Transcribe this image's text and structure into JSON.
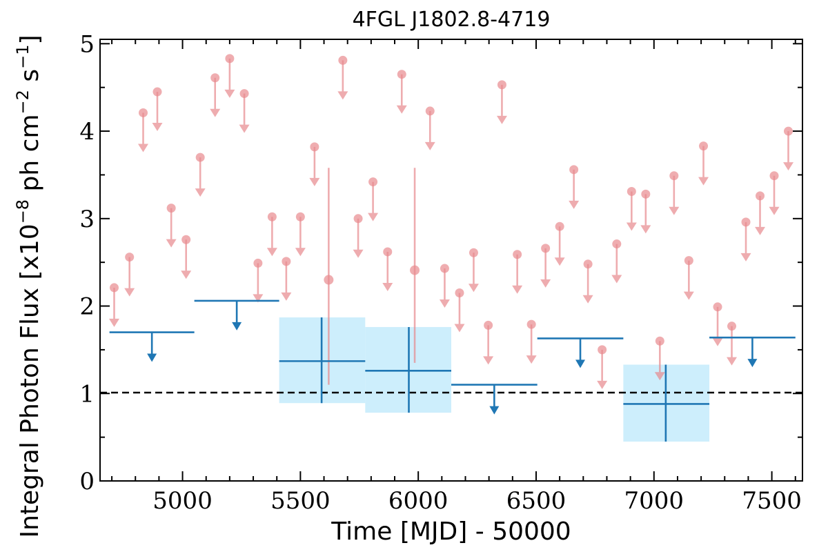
{
  "chart_data": {
    "type": "scatter",
    "title": "4FGL J1802.8-4719",
    "xlabel": "Time [MJD] - 50000",
    "ylabel": "Integral Photon Flux [x10",
    "ylabel_exp": "−8",
    "ylabel_mid": " ph cm",
    "ylabel_exp2": "−2",
    "ylabel_end": " s",
    "ylabel_exp3": "−1",
    "ylabel_close": "]",
    "xlim": [
      4650,
      7630
    ],
    "ylim": [
      0,
      5.05
    ],
    "x_ticks": [
      5000,
      5500,
      6000,
      6500,
      7000,
      7500
    ],
    "x_tick_labels": [
      "5000",
      "5500",
      "6000",
      "6500",
      "7000",
      "7500"
    ],
    "y_ticks": [
      0,
      1,
      2,
      3,
      4,
      5
    ],
    "y_tick_labels": [
      "0",
      "1",
      "2",
      "3",
      "4",
      "5"
    ],
    "reference_line": {
      "y": 1.01,
      "style": "dashed",
      "color": "#000000"
    },
    "colors": {
      "fine_series": "#e88a8e",
      "coarse_series": "#1f77b4",
      "error_band": "#cdeefc"
    },
    "series": [
      {
        "style": "fine-bin upper limits",
        "upper_limits": [
          {
            "x": 4710,
            "y": 2.21
          },
          {
            "x": 4775,
            "y": 2.56
          },
          {
            "x": 4833,
            "y": 4.21
          },
          {
            "x": 4893,
            "y": 4.45
          },
          {
            "x": 4952,
            "y": 3.12
          },
          {
            "x": 5015,
            "y": 2.76
          },
          {
            "x": 5075,
            "y": 3.7
          },
          {
            "x": 5138,
            "y": 4.61
          },
          {
            "x": 5200,
            "y": 4.83
          },
          {
            "x": 5262,
            "y": 4.43
          },
          {
            "x": 5320,
            "y": 2.49
          },
          {
            "x": 5380,
            "y": 3.02
          },
          {
            "x": 5440,
            "y": 2.51
          },
          {
            "x": 5500,
            "y": 3.02
          },
          {
            "x": 5560,
            "y": 3.82
          },
          {
            "x": 5680,
            "y": 4.81
          },
          {
            "x": 5745,
            "y": 3.0
          },
          {
            "x": 5808,
            "y": 3.42
          },
          {
            "x": 5870,
            "y": 2.62
          },
          {
            "x": 5930,
            "y": 4.65
          },
          {
            "x": 6050,
            "y": 4.23
          },
          {
            "x": 6112,
            "y": 2.43
          },
          {
            "x": 6175,
            "y": 2.15
          },
          {
            "x": 6235,
            "y": 2.61
          },
          {
            "x": 6297,
            "y": 1.78
          },
          {
            "x": 6355,
            "y": 4.53
          },
          {
            "x": 6420,
            "y": 2.59
          },
          {
            "x": 6480,
            "y": 1.79
          },
          {
            "x": 6540,
            "y": 2.66
          },
          {
            "x": 6600,
            "y": 2.91
          },
          {
            "x": 6660,
            "y": 3.56
          },
          {
            "x": 6720,
            "y": 2.48
          },
          {
            "x": 6780,
            "y": 1.5
          },
          {
            "x": 6842,
            "y": 2.71
          },
          {
            "x": 6905,
            "y": 3.31
          },
          {
            "x": 6965,
            "y": 3.28
          },
          {
            "x": 7025,
            "y": 1.6
          },
          {
            "x": 7085,
            "y": 3.49
          },
          {
            "x": 7148,
            "y": 2.52
          },
          {
            "x": 7210,
            "y": 3.83
          },
          {
            "x": 7270,
            "y": 1.99
          },
          {
            "x": 7330,
            "y": 1.77
          },
          {
            "x": 7390,
            "y": 2.96
          },
          {
            "x": 7450,
            "y": 3.26
          },
          {
            "x": 7510,
            "y": 3.49
          },
          {
            "x": 7570,
            "y": 4.0
          }
        ],
        "detections": [
          {
            "x": 5620,
            "y": 2.3,
            "y_low": 1.1,
            "y_high": 3.58
          },
          {
            "x": 5985,
            "y": 2.41,
            "y_low": 1.35,
            "y_high": 3.58
          }
        ]
      },
      {
        "style": "coarse-bin light curve",
        "upper_limits": [
          {
            "x_start": 4690,
            "x_end": 5050,
            "y": 1.7
          },
          {
            "x_start": 5050,
            "x_end": 5410,
            "y": 2.06
          },
          {
            "x_start": 6140,
            "x_end": 6505,
            "y": 1.1
          },
          {
            "x_start": 6505,
            "x_end": 6870,
            "y": 1.63
          },
          {
            "x_start": 7235,
            "x_end": 7600,
            "y": 1.64
          }
        ],
        "detections": [
          {
            "x": 5590,
            "x_start": 5410,
            "x_end": 5775,
            "y": 1.37,
            "y_low": 0.89,
            "y_high": 1.87
          },
          {
            "x": 5960,
            "x_start": 5775,
            "x_end": 6140,
            "y": 1.26,
            "y_low": 0.78,
            "y_high": 1.76
          },
          {
            "x": 7050,
            "x_start": 6870,
            "x_end": 7235,
            "y": 0.88,
            "y_low": 0.45,
            "y_high": 1.33
          }
        ]
      }
    ]
  }
}
